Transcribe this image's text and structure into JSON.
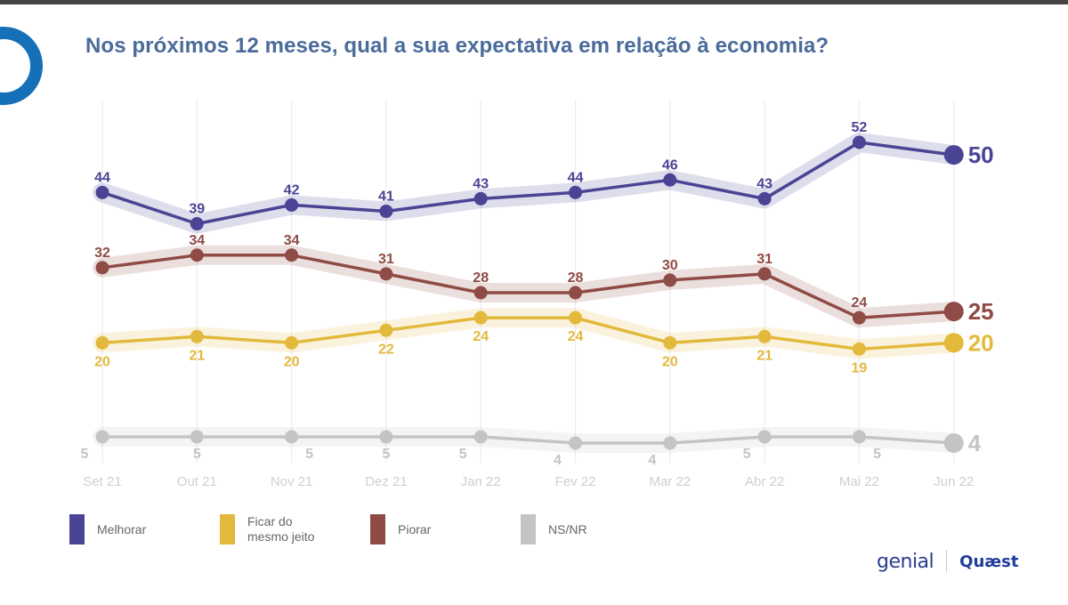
{
  "header": {
    "title": "Nos próximos 12 meses, qual a sua expectativa em relação à economia?"
  },
  "logos": {
    "left": "genial",
    "right": "Quæst"
  },
  "chart_data": {
    "type": "line",
    "title": "Nos próximos 12 meses, qual a sua expectativa em relação à economia?",
    "xlabel": "",
    "ylabel": "",
    "categories": [
      "Set 21",
      "Out 21",
      "Nov 21",
      "Dez 21",
      "Jan 22",
      "Fev 22",
      "Mar 22",
      "Abr 22",
      "Mai 22",
      "Jun 22"
    ],
    "ylim": [
      0,
      60
    ],
    "grid": "vertical",
    "legend": "bottom-left",
    "series": [
      {
        "name": "Melhorar",
        "color": "#4a4494",
        "values": [
          44,
          39,
          42,
          41,
          43,
          44,
          46,
          43,
          52,
          50
        ]
      },
      {
        "name": "Ficar do\nmesmo jeito",
        "color": "#e3b93c",
        "values": [
          20,
          21,
          20,
          22,
          24,
          24,
          20,
          21,
          19,
          20
        ]
      },
      {
        "name": "Piorar",
        "color": "#8f4b45",
        "values": [
          32,
          34,
          34,
          31,
          28,
          28,
          30,
          31,
          24,
          25
        ]
      },
      {
        "name": "NS/NR",
        "color": "#c4c4c4",
        "values": [
          5,
          5,
          5,
          5,
          5,
          4,
          4,
          5,
          5,
          4
        ]
      }
    ]
  }
}
